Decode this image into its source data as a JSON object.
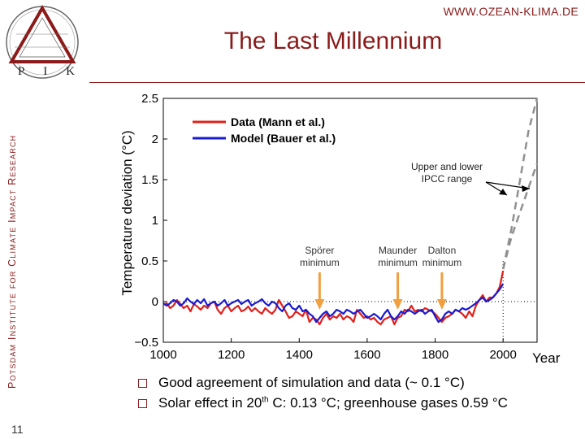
{
  "header": {
    "url": "WWW.OZEAN-KLIMA.DE",
    "title": "The Last Millennium",
    "logo_letters": [
      "P",
      "I",
      "K"
    ],
    "org_vertical": "Potsdam Institute for Climate Impact Research"
  },
  "page_number": "11",
  "bullets": [
    {
      "text": "Good agreement of simulation and data (~ 0.1 °C)"
    },
    {
      "before": "Solar effect in 20",
      "sup": "th",
      "after": " C: 0.13 °C; greenhouse gases 0.59 °C"
    }
  ],
  "colors": {
    "accent": "#8b1a1a",
    "data": "#e0201a",
    "model": "#1a1ad0",
    "arrow": "#f0a040",
    "ipcc": "#909090"
  },
  "chart_data": {
    "type": "line",
    "title": "",
    "xlabel": "Year",
    "ylabel": "Temperature deviation (°C)",
    "xlim": [
      1000,
      2100
    ],
    "ylim": [
      -0.5,
      2.5
    ],
    "x_ticks": [
      1000,
      1200,
      1400,
      1600,
      1800,
      2000
    ],
    "y_ticks": [
      -0.5,
      0,
      0.5,
      1,
      1.5,
      2,
      2.5
    ],
    "y_tick_labels": [
      "−0.5",
      "0",
      "0.5",
      "1",
      "1.5",
      "2",
      "2.5"
    ],
    "legend": {
      "placement": "top-left"
    },
    "series": [
      {
        "name": "Data (Mann et al.)",
        "color": "#e0201a",
        "x": [
          1000,
          1010,
          1020,
          1030,
          1040,
          1050,
          1060,
          1070,
          1080,
          1090,
          1100,
          1110,
          1120,
          1130,
          1140,
          1150,
          1160,
          1170,
          1180,
          1190,
          1200,
          1210,
          1220,
          1230,
          1240,
          1250,
          1260,
          1270,
          1280,
          1290,
          1300,
          1310,
          1320,
          1330,
          1340,
          1350,
          1360,
          1370,
          1380,
          1390,
          1400,
          1410,
          1420,
          1430,
          1440,
          1450,
          1460,
          1470,
          1480,
          1490,
          1500,
          1510,
          1520,
          1530,
          1540,
          1550,
          1560,
          1570,
          1580,
          1590,
          1600,
          1610,
          1620,
          1630,
          1640,
          1650,
          1660,
          1670,
          1680,
          1690,
          1700,
          1710,
          1720,
          1730,
          1740,
          1750,
          1760,
          1770,
          1780,
          1790,
          1800,
          1810,
          1820,
          1830,
          1840,
          1850,
          1860,
          1870,
          1880,
          1890,
          1900,
          1910,
          1920,
          1930,
          1940,
          1950,
          1960,
          1970,
          1980,
          1990,
          2000
        ],
        "y": [
          -0.04,
          -0.02,
          -0.08,
          -0.05,
          0.02,
          -0.03,
          -0.08,
          -0.05,
          -0.12,
          -0.03,
          -0.06,
          -0.1,
          -0.05,
          -0.08,
          -0.02,
          0.0,
          -0.1,
          -0.15,
          -0.08,
          -0.05,
          -0.12,
          -0.08,
          -0.05,
          -0.12,
          -0.1,
          -0.06,
          -0.12,
          -0.08,
          -0.12,
          -0.15,
          -0.08,
          -0.12,
          -0.15,
          -0.1,
          0.02,
          -0.05,
          -0.12,
          -0.2,
          -0.18,
          -0.12,
          -0.15,
          -0.18,
          -0.1,
          -0.25,
          -0.2,
          -0.22,
          -0.28,
          -0.2,
          -0.15,
          -0.22,
          -0.18,
          -0.2,
          -0.15,
          -0.22,
          -0.18,
          -0.2,
          -0.25,
          -0.1,
          -0.15,
          -0.2,
          -0.18,
          -0.22,
          -0.2,
          -0.25,
          -0.28,
          -0.22,
          -0.2,
          -0.18,
          -0.28,
          -0.2,
          -0.18,
          -0.1,
          -0.12,
          -0.05,
          -0.12,
          -0.1,
          -0.12,
          -0.08,
          -0.1,
          -0.12,
          -0.15,
          -0.2,
          -0.25,
          -0.2,
          -0.18,
          -0.15,
          -0.1,
          -0.12,
          -0.15,
          -0.2,
          -0.12,
          -0.18,
          -0.05,
          0.02,
          0.08,
          0.0,
          0.05,
          0.05,
          0.1,
          0.18,
          0.38
        ]
      },
      {
        "name": "Model (Bauer et al.)",
        "color": "#1a1ad0",
        "x": [
          1000,
          1010,
          1020,
          1030,
          1040,
          1050,
          1060,
          1070,
          1080,
          1090,
          1100,
          1110,
          1120,
          1130,
          1140,
          1150,
          1160,
          1170,
          1180,
          1190,
          1200,
          1210,
          1220,
          1230,
          1240,
          1250,
          1260,
          1270,
          1280,
          1290,
          1300,
          1310,
          1320,
          1330,
          1340,
          1350,
          1360,
          1370,
          1380,
          1390,
          1400,
          1410,
          1420,
          1430,
          1440,
          1450,
          1460,
          1470,
          1480,
          1490,
          1500,
          1510,
          1520,
          1530,
          1540,
          1550,
          1560,
          1570,
          1580,
          1590,
          1600,
          1610,
          1620,
          1630,
          1640,
          1650,
          1660,
          1670,
          1680,
          1690,
          1700,
          1710,
          1720,
          1730,
          1740,
          1750,
          1760,
          1770,
          1780,
          1790,
          1800,
          1810,
          1820,
          1830,
          1840,
          1850,
          1860,
          1870,
          1880,
          1890,
          1900,
          1910,
          1920,
          1930,
          1940,
          1950,
          1960,
          1970,
          1980,
          1990,
          2000
        ],
        "y": [
          -0.02,
          -0.05,
          -0.02,
          0.02,
          0.0,
          -0.05,
          -0.02,
          0.04,
          0.0,
          -0.03,
          0.02,
          -0.02,
          0.03,
          -0.05,
          -0.02,
          0.0,
          -0.05,
          -0.02,
          0.02,
          -0.05,
          -0.02,
          0.0,
          0.02,
          -0.03,
          0.0,
          0.02,
          -0.05,
          -0.02,
          0.0,
          0.03,
          -0.02,
          -0.05,
          0.0,
          -0.02,
          -0.08,
          -0.12,
          -0.05,
          -0.02,
          -0.08,
          -0.1,
          -0.05,
          -0.12,
          -0.1,
          -0.15,
          -0.18,
          -0.25,
          -0.2,
          -0.15,
          -0.12,
          -0.18,
          -0.15,
          -0.1,
          -0.12,
          -0.15,
          -0.1,
          -0.12,
          -0.15,
          -0.12,
          -0.1,
          -0.15,
          -0.2,
          -0.18,
          -0.15,
          -0.18,
          -0.22,
          -0.15,
          -0.1,
          -0.18,
          -0.22,
          -0.18,
          -0.12,
          -0.15,
          -0.1,
          -0.12,
          -0.15,
          -0.12,
          -0.1,
          -0.15,
          -0.12,
          -0.1,
          -0.18,
          -0.25,
          -0.22,
          -0.15,
          -0.12,
          -0.15,
          -0.1,
          -0.12,
          -0.08,
          -0.1,
          -0.08,
          -0.05,
          -0.02,
          0.02,
          0.05,
          0.0,
          0.02,
          0.05,
          0.1,
          0.15,
          0.22
        ]
      }
    ],
    "ipcc_range": {
      "color": "#909090",
      "upper": {
        "x": [
          2000,
          2025,
          2050,
          2075,
          2100
        ],
        "y": [
          0.4,
          0.9,
          1.5,
          2.1,
          2.5
        ]
      },
      "lower": {
        "x": [
          2000,
          2025,
          2050,
          2075,
          2100
        ],
        "y": [
          0.4,
          0.8,
          1.1,
          1.4,
          1.7
        ]
      }
    },
    "annotations": [
      {
        "kind": "ipcc",
        "text": [
          "Upper and lower",
          "IPCC range"
        ]
      },
      {
        "kind": "minimum",
        "text": [
          "Spörer",
          "minimum"
        ],
        "x": 1460
      },
      {
        "kind": "minimum",
        "text": [
          "Maunder",
          "minimum"
        ],
        "x": 1690
      },
      {
        "kind": "minimum",
        "text": [
          "Dalton",
          "minimum"
        ],
        "x": 1820
      }
    ]
  }
}
